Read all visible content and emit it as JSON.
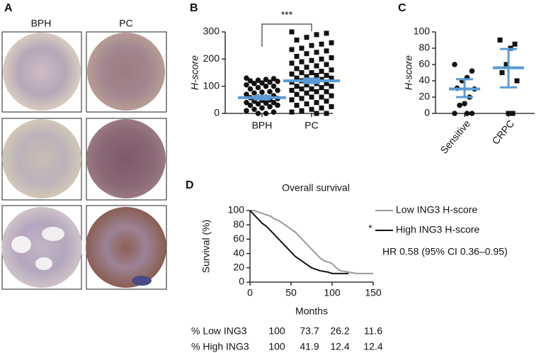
{
  "panel_a": {
    "label": "A",
    "columns": [
      "BPH",
      "PC"
    ]
  },
  "chart_data": [
    {
      "type": "dotplot",
      "label": "B",
      "ylabel": "H-score",
      "categories": [
        "BPH",
        "PC"
      ],
      "markers": [
        "circle",
        "square"
      ],
      "color": "#111111",
      "mean_color": "#5b9bd5",
      "ylim": [
        0,
        300
      ],
      "yticks": [
        0,
        100,
        200,
        300
      ],
      "points": [
        [
          130,
          128,
          125,
          122,
          120,
          118,
          115,
          112,
          110,
          105,
          100,
          100,
          95,
          90,
          85,
          80,
          78,
          75,
          70,
          65,
          60,
          60,
          58,
          55,
          50,
          48,
          45,
          40,
          40,
          38,
          35,
          30,
          30,
          25,
          20,
          15,
          10,
          5,
          0,
          0
        ],
        [
          300,
          295,
          290,
          280,
          270,
          260,
          255,
          250,
          240,
          235,
          230,
          225,
          220,
          210,
          205,
          200,
          195,
          190,
          185,
          180,
          175,
          170,
          165,
          160,
          155,
          150,
          150,
          145,
          140,
          140,
          135,
          130,
          130,
          125,
          120,
          120,
          115,
          110,
          110,
          105,
          100,
          100,
          95,
          90,
          90,
          85,
          80,
          80,
          75,
          70,
          65,
          60,
          60,
          55,
          50,
          45,
          40,
          35,
          30,
          25,
          20,
          15,
          10,
          5,
          0,
          0
        ]
      ],
      "means": [
        58,
        120
      ],
      "ci": [
        [
          52,
          64
        ],
        [
          112,
          128
        ]
      ],
      "significance": "***"
    },
    {
      "type": "dotplot",
      "label": "C",
      "ylabel": "H-score",
      "categories": [
        "Sensitive",
        "CRPC"
      ],
      "markers": [
        "circle",
        "square"
      ],
      "color": "#111111",
      "mean_color": "#5b9bd5",
      "ylim": [
        0,
        100
      ],
      "yticks": [
        0,
        20,
        40,
        60,
        80,
        100
      ],
      "points": [
        [
          60,
          52,
          44,
          40,
          31,
          30,
          20,
          12,
          10,
          0,
          0,
          0
        ],
        [
          90,
          85,
          80,
          60,
          50,
          40,
          0,
          0
        ]
      ],
      "means": [
        30,
        56
      ],
      "ci": [
        [
          20,
          42
        ],
        [
          32,
          79
        ]
      ]
    },
    {
      "type": "line",
      "label": "D",
      "title": "Overall survival",
      "xlabel": "Months",
      "ylabel": "Survival (%)",
      "xlim": [
        0,
        150
      ],
      "xticks": [
        0,
        50,
        100,
        150
      ],
      "ylim": [
        0,
        100
      ],
      "yticks": [
        0,
        20,
        40,
        60,
        80,
        100
      ],
      "series": [
        {
          "name": "Low ING3 H-score",
          "color": "#999999",
          "x": [
            0,
            5,
            10,
            15,
            20,
            25,
            30,
            35,
            40,
            45,
            50,
            55,
            60,
            65,
            70,
            75,
            80,
            85,
            90,
            95,
            100,
            105,
            110,
            120,
            130,
            140,
            150
          ],
          "values": [
            100,
            100,
            98,
            96,
            94,
            92,
            88,
            86,
            82,
            78,
            74,
            70,
            64,
            58,
            52,
            46,
            40,
            34,
            30,
            28,
            26,
            20,
            16,
            14,
            12,
            12,
            12
          ]
        },
        {
          "name": "High ING3 H-score",
          "color": "#111111",
          "significance": "*",
          "x": [
            0,
            5,
            10,
            15,
            20,
            25,
            30,
            35,
            40,
            45,
            50,
            55,
            60,
            65,
            70,
            75,
            80,
            85,
            90,
            95,
            100,
            110,
            120
          ],
          "values": [
            100,
            94,
            88,
            82,
            78,
            72,
            66,
            60,
            54,
            48,
            42,
            36,
            32,
            28,
            24,
            20,
            18,
            16,
            15,
            14,
            12,
            12,
            12
          ]
        }
      ],
      "annotation": "HR 0.58 (95% CI 0.36–0.95)",
      "risk_table": {
        "rows": [
          {
            "label": "% Low ING3",
            "values": [
              100,
              73.7,
              26.2,
              11.6
            ]
          },
          {
            "label": "% High ING3",
            "values": [
              100,
              41.9,
              12.4,
              12.4
            ]
          }
        ]
      }
    }
  ]
}
